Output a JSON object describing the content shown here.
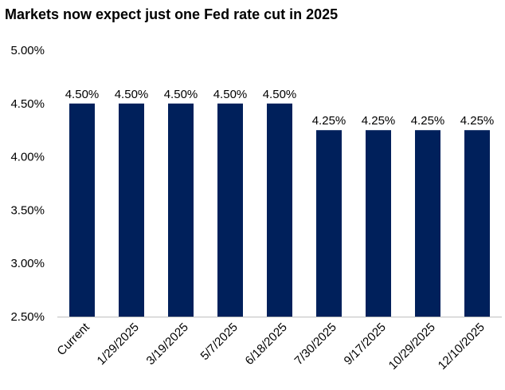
{
  "chart_data": {
    "type": "bar",
    "title": "Markets  now expect just one Fed rate cut in 2025",
    "xlabel": "",
    "ylabel": "",
    "categories": [
      "Current",
      "1/29/2025",
      "3/19/2025",
      "5/7/2025",
      "6/18/2025",
      "7/30/2025",
      "9/17/2025",
      "10/29/2025",
      "12/10/2025"
    ],
    "values": [
      4.5,
      4.5,
      4.5,
      4.5,
      4.5,
      4.25,
      4.25,
      4.25,
      4.25
    ],
    "data_labels": [
      "4.50%",
      "4.50%",
      "4.50%",
      "4.50%",
      "4.50%",
      "4.25%",
      "4.25%",
      "4.25%",
      "4.25%"
    ],
    "ylim": [
      2.5,
      5.0
    ],
    "yticks": [
      2.5,
      3.0,
      3.5,
      4.0,
      4.5,
      5.0
    ],
    "ytick_labels": [
      "2.50%",
      "3.00%",
      "3.50%",
      "4.00%",
      "4.50%",
      "5.00%"
    ],
    "grid": false,
    "legend": "none",
    "colors": {
      "bar": "#00205b",
      "text": "#000000",
      "axis": "#bfbfbf"
    }
  }
}
